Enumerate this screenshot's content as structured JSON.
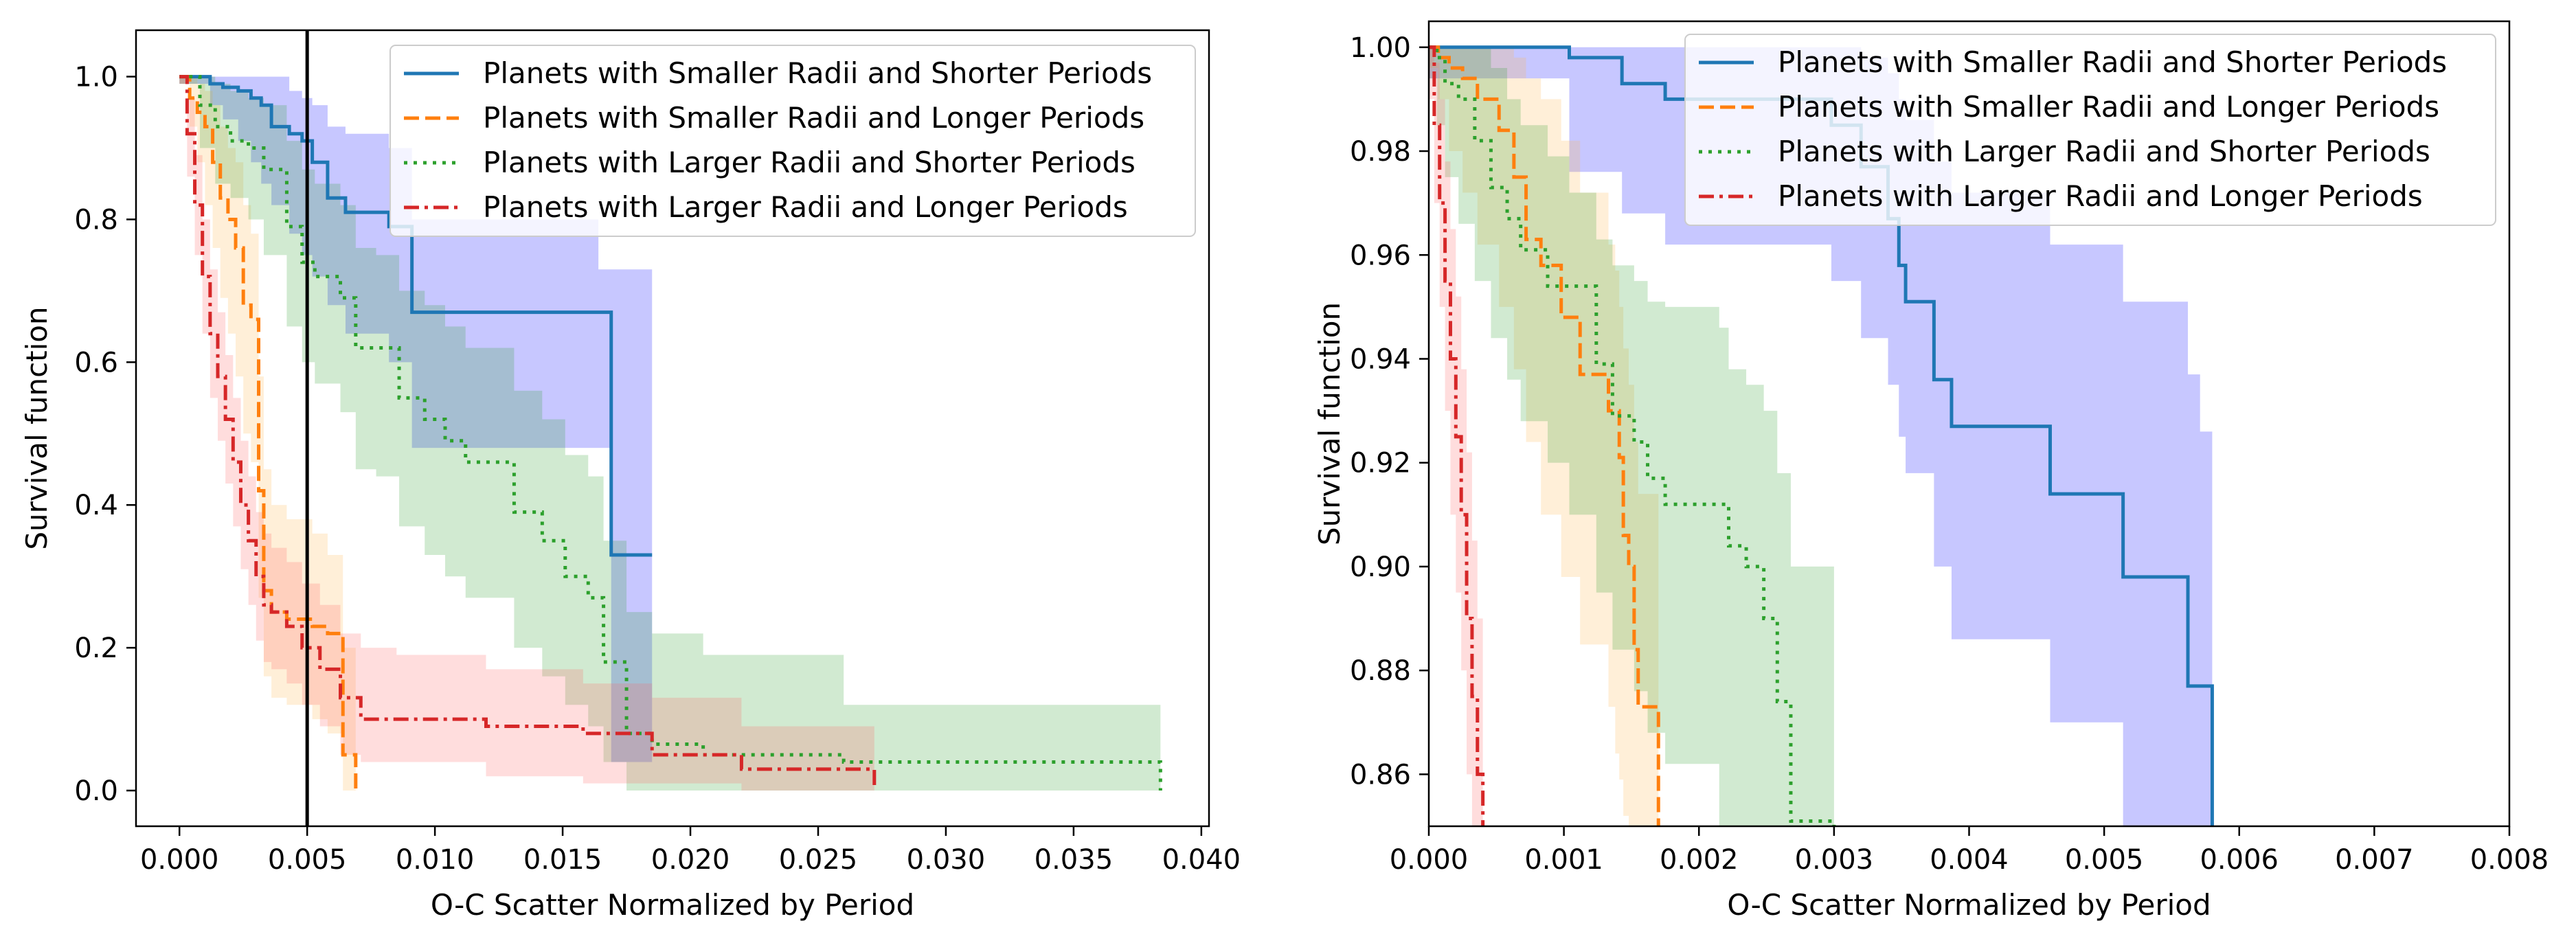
{
  "chart_data": [
    {
      "type": "line",
      "xlabel": "O-C Scatter Normalized by Period",
      "ylabel": "Survival function",
      "xlim": [
        -0.0017,
        0.0403
      ],
      "ylim": [
        -0.05,
        1.065
      ],
      "xticks": [
        0.0,
        0.005,
        0.01,
        0.015,
        0.02,
        0.025,
        0.03,
        0.035,
        0.04
      ],
      "xtick_labels": [
        "0.000",
        "0.005",
        "0.010",
        "0.015",
        "0.020",
        "0.025",
        "0.030",
        "0.035",
        "0.040"
      ],
      "yticks": [
        0.0,
        0.2,
        0.4,
        0.6,
        0.8,
        1.0
      ],
      "ytick_labels": [
        "0.0",
        "0.2",
        "0.4",
        "0.6",
        "0.8",
        "1.0"
      ],
      "vline_x": 0.005,
      "legend_position": "upper-right",
      "series": [
        {
          "name": "Planets with Smaller Radii and Shorter Periods",
          "color": "#1f77b4",
          "band_color": "#0000ff",
          "dash": "solid",
          "x": [
            0,
            0.0012,
            0.0017,
            0.0023,
            0.0028,
            0.0032,
            0.0036,
            0.0043,
            0.0048,
            0.0052,
            0.0058,
            0.0065,
            0.0082,
            0.0091,
            0.0119,
            0.0148,
            0.0164,
            0.0169,
            0.0185
          ],
          "y": [
            1.0,
            0.99,
            0.985,
            0.98,
            0.97,
            0.96,
            0.93,
            0.92,
            0.91,
            0.88,
            0.83,
            0.81,
            0.79,
            0.67,
            0.67,
            0.67,
            0.67,
            0.33,
            0.33
          ],
          "lo": [
            0.99,
            0.96,
            0.94,
            0.91,
            0.88,
            0.85,
            0.82,
            0.78,
            0.75,
            0.72,
            0.68,
            0.64,
            0.6,
            0.48,
            0.48,
            0.48,
            0.48,
            0.04,
            0.04
          ],
          "hi": [
            1.0,
            1.0,
            1.0,
            1.0,
            1.0,
            1.0,
            1.0,
            0.98,
            0.97,
            0.96,
            0.93,
            0.92,
            0.9,
            0.8,
            0.8,
            0.8,
            0.73,
            0.73,
            0.73
          ]
        },
        {
          "name": "Planets with Smaller Radii and Longer Periods",
          "color": "#ff7f0e",
          "band_color": "#ffb64c",
          "dash": "dashed",
          "x": [
            0,
            0.0004,
            0.0007,
            0.001,
            0.0013,
            0.0016,
            0.0019,
            0.0022,
            0.0025,
            0.0028,
            0.0031,
            0.0033,
            0.0036,
            0.0042,
            0.0052,
            0.0058,
            0.0064,
            0.0069
          ],
          "y": [
            1.0,
            0.97,
            0.95,
            0.93,
            0.88,
            0.83,
            0.8,
            0.76,
            0.68,
            0.66,
            0.42,
            0.28,
            0.25,
            0.24,
            0.23,
            0.22,
            0.05,
            0.0
          ],
          "lo": [
            0.99,
            0.93,
            0.88,
            0.82,
            0.76,
            0.69,
            0.64,
            0.58,
            0.5,
            0.46,
            0.27,
            0.16,
            0.13,
            0.12,
            0.1,
            0.08,
            0.0,
            0.0
          ],
          "hi": [
            1.0,
            1.0,
            0.99,
            0.98,
            0.96,
            0.93,
            0.9,
            0.88,
            0.82,
            0.78,
            0.58,
            0.45,
            0.4,
            0.38,
            0.36,
            0.33,
            0.2,
            0.05
          ]
        },
        {
          "name": "Planets with Larger Radii and Shorter Periods",
          "color": "#2ca02c",
          "band_color": "#2ca02c",
          "dash": "dotted",
          "x": [
            0,
            0.0008,
            0.0014,
            0.002,
            0.0027,
            0.0033,
            0.0042,
            0.0048,
            0.0053,
            0.0063,
            0.0069,
            0.0077,
            0.0086,
            0.0096,
            0.0104,
            0.0112,
            0.0131,
            0.0142,
            0.0151,
            0.016,
            0.0166,
            0.0175,
            0.0185,
            0.0205,
            0.026,
            0.0384
          ],
          "y": [
            1.0,
            0.96,
            0.93,
            0.91,
            0.9,
            0.87,
            0.79,
            0.74,
            0.72,
            0.69,
            0.62,
            0.62,
            0.55,
            0.52,
            0.49,
            0.46,
            0.39,
            0.35,
            0.3,
            0.27,
            0.18,
            0.08,
            0.065,
            0.05,
            0.04,
            0.0
          ],
          "lo": [
            0.99,
            0.9,
            0.85,
            0.83,
            0.8,
            0.75,
            0.65,
            0.6,
            0.57,
            0.53,
            0.45,
            0.44,
            0.37,
            0.33,
            0.3,
            0.27,
            0.2,
            0.16,
            0.12,
            0.09,
            0.04,
            0.0,
            0.0,
            0.0,
            0.0,
            0.0
          ],
          "hi": [
            1.0,
            1.0,
            0.99,
            0.98,
            0.97,
            0.96,
            0.91,
            0.87,
            0.85,
            0.82,
            0.76,
            0.75,
            0.7,
            0.68,
            0.65,
            0.62,
            0.56,
            0.52,
            0.47,
            0.44,
            0.35,
            0.25,
            0.22,
            0.19,
            0.12,
            0.0
          ]
        },
        {
          "name": "Planets with Larger Radii and Longer Periods",
          "color": "#d62728",
          "band_color": "#ff6666",
          "dash": "dashdot",
          "x": [
            0,
            0.0003,
            0.0006,
            0.0009,
            0.0012,
            0.0015,
            0.0018,
            0.0021,
            0.0024,
            0.0027,
            0.003,
            0.0033,
            0.0036,
            0.0042,
            0.0048,
            0.0055,
            0.0063,
            0.0071,
            0.0085,
            0.012,
            0.0158,
            0.0185,
            0.022,
            0.0272
          ],
          "y": [
            1.0,
            0.92,
            0.82,
            0.72,
            0.64,
            0.58,
            0.52,
            0.46,
            0.4,
            0.35,
            0.3,
            0.26,
            0.25,
            0.23,
            0.2,
            0.17,
            0.13,
            0.1,
            0.1,
            0.09,
            0.08,
            0.05,
            0.03,
            0.0
          ],
          "lo": [
            0.99,
            0.86,
            0.75,
            0.64,
            0.55,
            0.49,
            0.43,
            0.37,
            0.31,
            0.26,
            0.21,
            0.18,
            0.17,
            0.15,
            0.12,
            0.09,
            0.05,
            0.04,
            0.04,
            0.02,
            0.01,
            0.01,
            0.0,
            0.0
          ],
          "hi": [
            1.0,
            0.97,
            0.89,
            0.8,
            0.73,
            0.67,
            0.61,
            0.55,
            0.49,
            0.44,
            0.39,
            0.36,
            0.34,
            0.32,
            0.29,
            0.26,
            0.22,
            0.2,
            0.19,
            0.17,
            0.15,
            0.13,
            0.09,
            0.0
          ]
        }
      ]
    },
    {
      "type": "line",
      "xlabel": "O-C Scatter Normalized by Period",
      "ylabel": "Survival function",
      "xlim": [
        0.0,
        0.008
      ],
      "ylim": [
        0.85,
        1.005
      ],
      "xticks": [
        0.0,
        0.001,
        0.002,
        0.003,
        0.004,
        0.005,
        0.006,
        0.007,
        0.008
      ],
      "xtick_labels": [
        "0.000",
        "0.001",
        "0.002",
        "0.003",
        "0.004",
        "0.005",
        "0.006",
        "0.007",
        "0.008"
      ],
      "yticks": [
        0.86,
        0.88,
        0.9,
        0.92,
        0.94,
        0.96,
        0.98,
        1.0
      ],
      "ytick_labels": [
        "0.86",
        "0.88",
        "0.90",
        "0.92",
        "0.94",
        "0.96",
        "0.98",
        "1.00"
      ],
      "legend_position": "upper-right",
      "series": [
        {
          "name": "Planets with Smaller Radii and Shorter Periods",
          "color": "#1f77b4",
          "band_color": "#0000ff",
          "dash": "solid",
          "x": [
            0,
            0.00104,
            0.00127,
            0.00143,
            0.00175,
            0.00242,
            0.00298,
            0.0032,
            0.0034,
            0.00348,
            0.00353,
            0.00374,
            0.00387,
            0.0046,
            0.00514,
            0.00562,
            0.00571,
            0.0058
          ],
          "y": [
            1.0,
            0.998,
            0.998,
            0.993,
            0.99,
            0.99,
            0.985,
            0.977,
            0.967,
            0.958,
            0.951,
            0.936,
            0.927,
            0.914,
            0.898,
            0.877,
            0.877,
            0.85
          ],
          "lo": [
            0.994,
            0.976,
            0.976,
            0.968,
            0.962,
            0.962,
            0.955,
            0.944,
            0.935,
            0.925,
            0.918,
            0.9,
            0.886,
            0.87,
            0.85,
            0.85,
            0.85,
            0.85
          ],
          "hi": [
            1.0,
            1.0,
            1.0,
            1.0,
            1.0,
            1.0,
            1.0,
            0.998,
            0.995,
            0.99,
            0.986,
            0.978,
            0.972,
            0.962,
            0.951,
            0.937,
            0.926,
            0.89
          ]
        },
        {
          "name": "Planets with Smaller Radii and Longer Periods",
          "color": "#ff7f0e",
          "band_color": "#ffb64c",
          "dash": "dashed",
          "x": [
            0,
            7e-05,
            0.00015,
            0.00025,
            0.00036,
            0.00052,
            0.00063,
            0.00072,
            0.00083,
            0.00098,
            0.00112,
            0.00133,
            0.00138,
            0.00141,
            0.00144,
            0.00148,
            0.00152,
            0.00155,
            0.0017
          ],
          "y": [
            1.0,
            0.998,
            0.996,
            0.994,
            0.99,
            0.984,
            0.975,
            0.963,
            0.958,
            0.948,
            0.937,
            0.93,
            0.93,
            0.921,
            0.906,
            0.9,
            0.884,
            0.873,
            0.85
          ],
          "lo": [
            0.996,
            0.99,
            0.98,
            0.972,
            0.962,
            0.95,
            0.938,
            0.924,
            0.91,
            0.898,
            0.885,
            0.873,
            0.864,
            0.859,
            0.852,
            0.85,
            0.85,
            0.85,
            0.85
          ],
          "hi": [
            1.0,
            1.0,
            1.0,
            1.0,
            1.0,
            1.0,
            0.998,
            0.994,
            0.99,
            0.982,
            0.972,
            0.962,
            0.957,
            0.95,
            0.942,
            0.935,
            0.924,
            0.914,
            0.862
          ]
        },
        {
          "name": "Planets with Larger Radii and Shorter Periods",
          "color": "#2ca02c",
          "band_color": "#2ca02c",
          "dash": "dotted",
          "x": [
            0,
            6e-05,
            0.00012,
            0.00022,
            0.00034,
            0.00046,
            0.00058,
            0.00068,
            0.00088,
            0.00104,
            0.00124,
            0.00136,
            0.00152,
            0.00162,
            0.00175,
            0.00215,
            0.00222,
            0.00235,
            0.00248,
            0.00258,
            0.00268,
            0.003
          ],
          "y": [
            1.0,
            0.998,
            0.993,
            0.99,
            0.982,
            0.973,
            0.967,
            0.961,
            0.954,
            0.954,
            0.939,
            0.929,
            0.924,
            0.917,
            0.912,
            0.912,
            0.904,
            0.9,
            0.89,
            0.874,
            0.851,
            0.85
          ],
          "lo": [
            0.994,
            0.985,
            0.975,
            0.966,
            0.955,
            0.944,
            0.936,
            0.928,
            0.92,
            0.91,
            0.895,
            0.884,
            0.876,
            0.868,
            0.862,
            0.85,
            0.85,
            0.85,
            0.85,
            0.85,
            0.85,
            0.85
          ],
          "hi": [
            1.0,
            1.0,
            1.0,
            1.0,
            1.0,
            0.996,
            0.99,
            0.985,
            0.979,
            0.972,
            0.963,
            0.958,
            0.955,
            0.951,
            0.95,
            0.946,
            0.938,
            0.935,
            0.93,
            0.918,
            0.9,
            0.852
          ]
        },
        {
          "name": "Planets with Larger Radii and Longer Periods",
          "color": "#d62728",
          "band_color": "#ff6666",
          "dash": "dashdot",
          "x": [
            0,
            4e-05,
            8e-05,
            0.00012,
            0.00016,
            0.0002,
            0.00024,
            0.00028,
            0.00032,
            0.00036,
            0.0004
          ],
          "y": [
            1.0,
            0.985,
            0.97,
            0.955,
            0.94,
            0.925,
            0.91,
            0.89,
            0.875,
            0.86,
            0.85
          ],
          "lo": [
            0.99,
            0.97,
            0.95,
            0.93,
            0.91,
            0.895,
            0.88,
            0.86,
            0.85,
            0.85,
            0.85
          ],
          "hi": [
            1.0,
            0.997,
            0.99,
            0.978,
            0.965,
            0.952,
            0.938,
            0.922,
            0.905,
            0.89,
            0.87
          ]
        }
      ]
    }
  ]
}
